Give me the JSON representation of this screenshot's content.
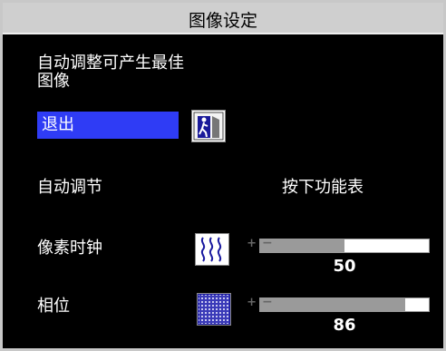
{
  "title": "图像设定",
  "description": "自动调整可产生最佳\n图像",
  "exit": {
    "label": "退出",
    "icon": "exit-door-icon"
  },
  "auto_adjust": {
    "label": "自动调节",
    "hint": "按下功能表"
  },
  "clock": {
    "label": "像素时钟",
    "icon": "wave-lines-icon",
    "value": "50",
    "fraction": 0.5
  },
  "phase": {
    "label": "相位",
    "icon": "phase-pattern-icon",
    "value": "86",
    "fraction": 0.86
  },
  "colors": {
    "background": "#000000",
    "titlebar": "#cfcfcf",
    "highlight": "#2f3cf5"
  }
}
